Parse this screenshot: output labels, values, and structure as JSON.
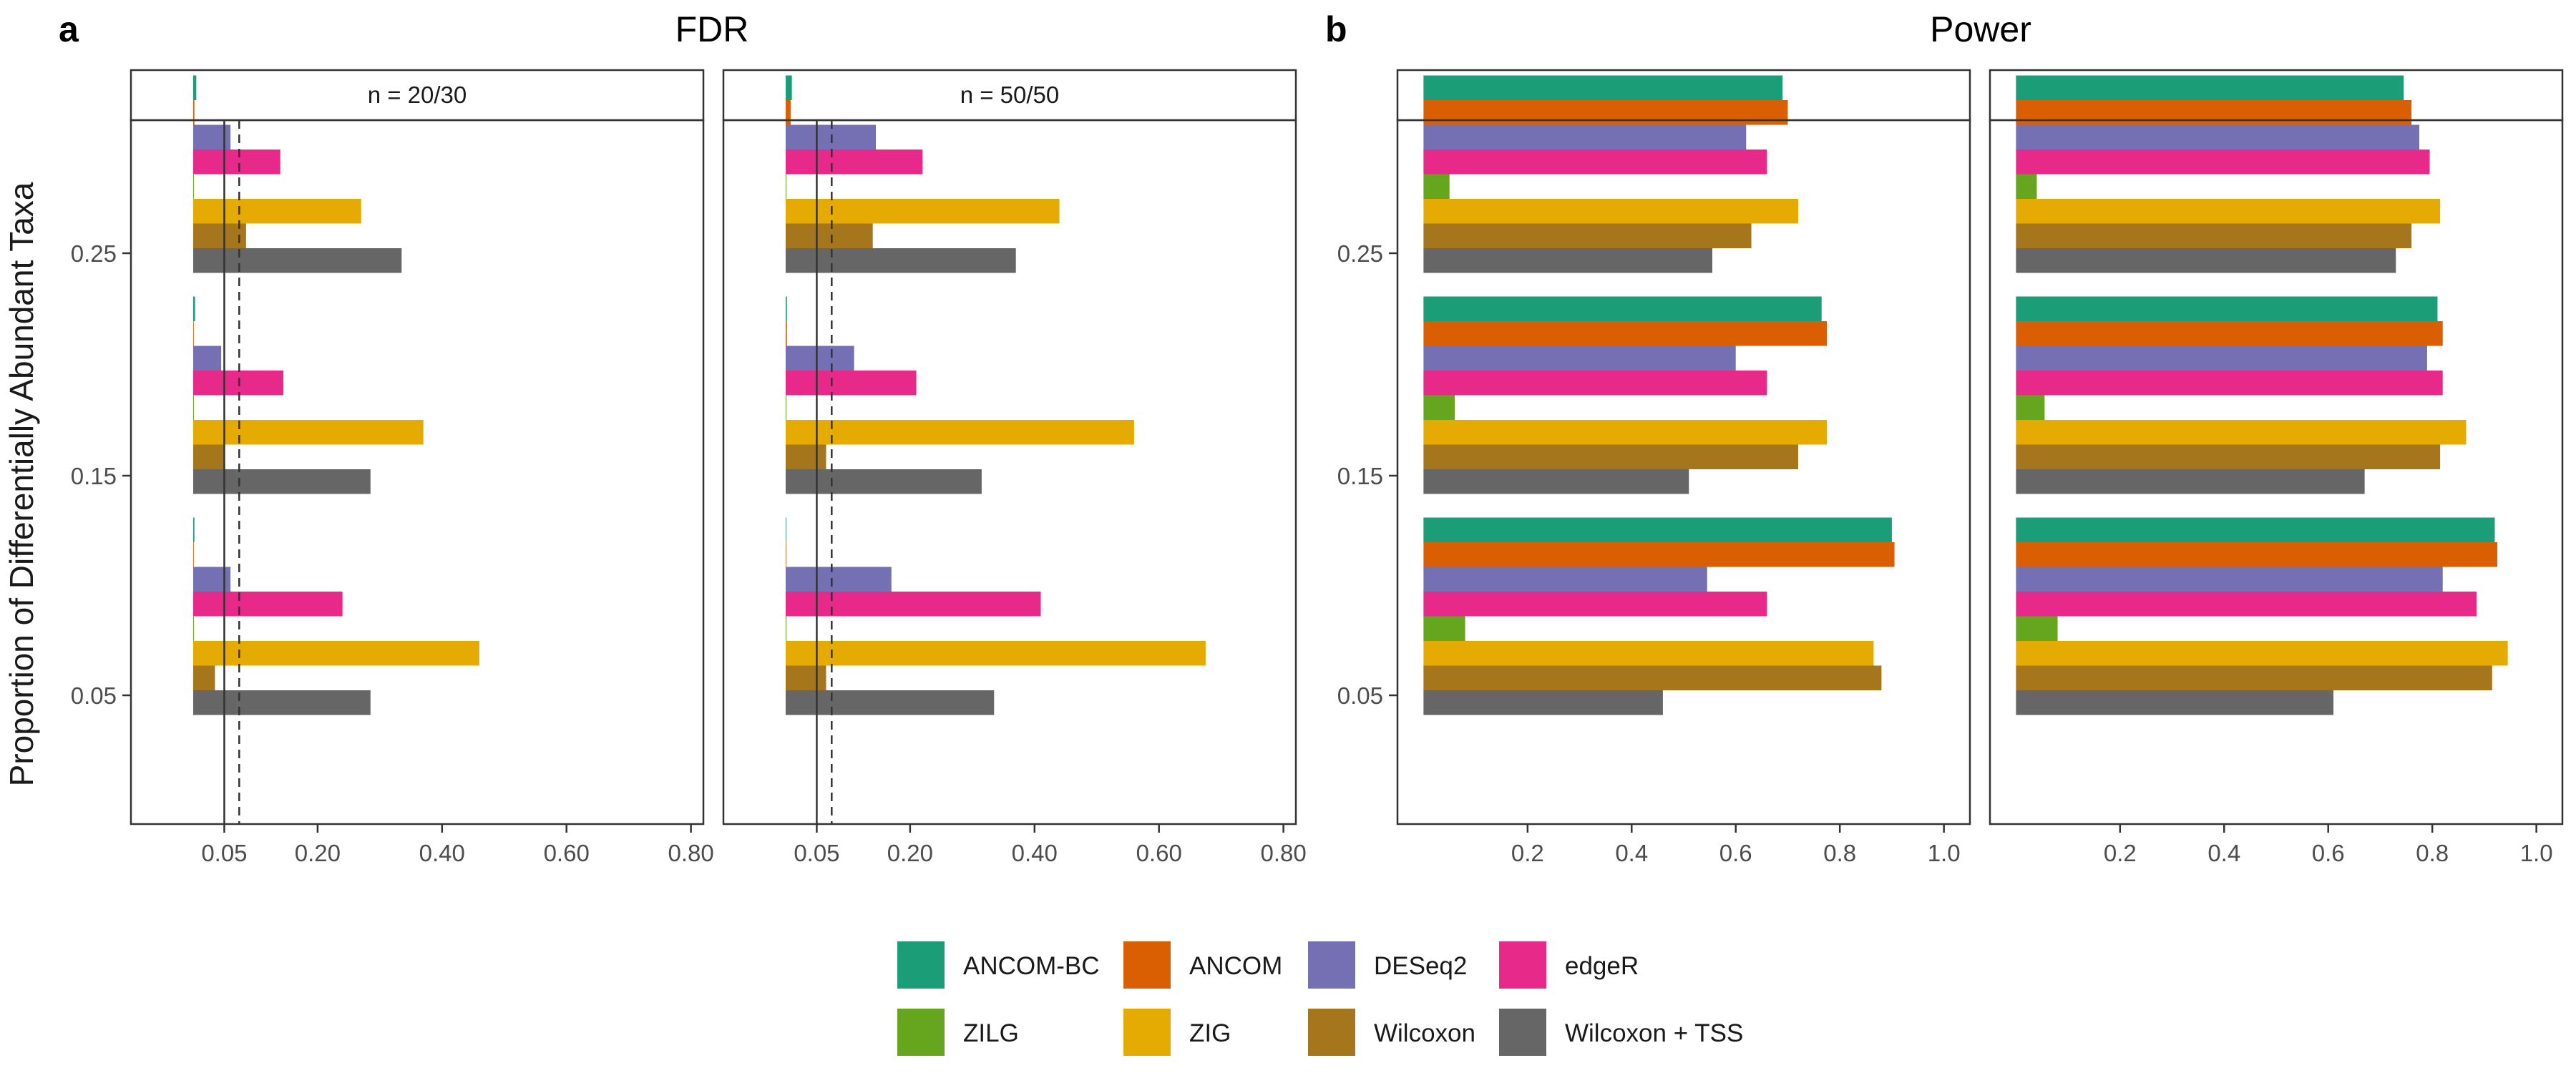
{
  "panels": [
    {
      "letter": "a",
      "title": "FDR"
    },
    {
      "letter": "b",
      "title": "Power"
    }
  ],
  "y_axis_label": "Proportion of Differentially Abundant Taxa",
  "colors": {
    "ANCOM-BC": "#1b9e77",
    "ANCOM": "#d95f02",
    "DESeq2": "#7570b3",
    "edgeR": "#e7298a",
    "ZILG": "#66a61e",
    "ZIG": "#e6ab02",
    "Wilcoxon": "#a6761d",
    "Wilcoxon + TSS": "#666666"
  },
  "legend": {
    "rows": [
      [
        "ANCOM-BC",
        "ANCOM",
        "DESeq2",
        "edgeR"
      ],
      [
        "ZILG",
        "ZIG",
        "Wilcoxon",
        "Wilcoxon + TSS"
      ]
    ]
  },
  "chart_data": [
    {
      "type": "bar",
      "orientation": "horizontal",
      "panel": "a",
      "title": "FDR",
      "facet": "n = 20/30",
      "ylabel": "Proportion of Differentially Abundant Taxa",
      "categories": [
        "0.05",
        "0.15",
        "0.25"
      ],
      "category_tick_labels": [
        "0.05",
        "0.15",
        "0.25"
      ],
      "xlim": [
        -0.1,
        0.82
      ],
      "xticks": [
        0.05,
        0.2,
        0.4,
        0.6,
        0.8
      ],
      "xtick_labels": [
        "0.05",
        "0.20",
        "0.40",
        "0.60",
        "0.80"
      ],
      "reference_lines": [
        {
          "x": 0.05,
          "style": "solid"
        },
        {
          "x": 0.074,
          "style": "dashed"
        }
      ],
      "series": [
        {
          "name": "ANCOM-BC",
          "values": [
            0.002,
            0.003,
            0.005
          ]
        },
        {
          "name": "ANCOM",
          "values": [
            0.001,
            0.001,
            0.002
          ]
        },
        {
          "name": "DESeq2",
          "values": [
            0.06,
            0.045,
            0.06
          ]
        },
        {
          "name": "edgeR",
          "values": [
            0.24,
            0.145,
            0.14
          ]
        },
        {
          "name": "ZILG",
          "values": [
            0.0,
            0.0,
            0.0
          ]
        },
        {
          "name": "ZIG",
          "values": [
            0.46,
            0.37,
            0.27
          ]
        },
        {
          "name": "Wilcoxon",
          "values": [
            0.035,
            0.05,
            0.085
          ]
        },
        {
          "name": "Wilcoxon + TSS",
          "values": [
            0.285,
            0.285,
            0.335
          ]
        }
      ]
    },
    {
      "type": "bar",
      "orientation": "horizontal",
      "panel": "a",
      "title": "FDR",
      "facet": "n = 50/50",
      "ylabel": "Proportion of Differentially Abundant Taxa",
      "categories": [
        "0.05",
        "0.15",
        "0.25"
      ],
      "category_tick_labels": [
        "0.05",
        "0.15",
        "0.25"
      ],
      "xlim": [
        -0.1,
        0.82
      ],
      "xticks": [
        0.05,
        0.2,
        0.4,
        0.6,
        0.8
      ],
      "xtick_labels": [
        "0.05",
        "0.20",
        "0.40",
        "0.60",
        "0.80"
      ],
      "reference_lines": [
        {
          "x": 0.05,
          "style": "solid"
        },
        {
          "x": 0.074,
          "style": "dashed"
        }
      ],
      "series": [
        {
          "name": "ANCOM-BC",
          "values": [
            0.001,
            0.002,
            0.01
          ]
        },
        {
          "name": "ANCOM",
          "values": [
            0.001,
            0.002,
            0.008
          ]
        },
        {
          "name": "DESeq2",
          "values": [
            0.17,
            0.11,
            0.145
          ]
        },
        {
          "name": "edgeR",
          "values": [
            0.41,
            0.21,
            0.22
          ]
        },
        {
          "name": "ZILG",
          "values": [
            0.0,
            0.0,
            0.0
          ]
        },
        {
          "name": "ZIG",
          "values": [
            0.675,
            0.56,
            0.44
          ]
        },
        {
          "name": "Wilcoxon",
          "values": [
            0.065,
            0.065,
            0.14
          ]
        },
        {
          "name": "Wilcoxon + TSS",
          "values": [
            0.335,
            0.315,
            0.37
          ]
        }
      ]
    },
    {
      "type": "bar",
      "orientation": "horizontal",
      "panel": "b",
      "title": "Power",
      "facet": "n = 20/30",
      "ylabel": "Proportion of Differentially Abundant Taxa",
      "categories": [
        "0.05",
        "0.15",
        "0.25"
      ],
      "category_tick_labels": [
        "0.05",
        "0.15",
        "0.25"
      ],
      "xlim": [
        -0.05,
        1.05
      ],
      "xticks": [
        0.2,
        0.4,
        0.6,
        0.8,
        1.0
      ],
      "xtick_labels": [
        "0.2",
        "0.4",
        "0.6",
        "0.8",
        "1.0"
      ],
      "reference_lines": [],
      "series": [
        {
          "name": "ANCOM-BC",
          "values": [
            0.9,
            0.765,
            0.69
          ]
        },
        {
          "name": "ANCOM",
          "values": [
            0.905,
            0.775,
            0.7
          ]
        },
        {
          "name": "DESeq2",
          "values": [
            0.545,
            0.6,
            0.62
          ]
        },
        {
          "name": "edgeR",
          "values": [
            0.66,
            0.66,
            0.66
          ]
        },
        {
          "name": "ZILG",
          "values": [
            0.08,
            0.06,
            0.05
          ]
        },
        {
          "name": "ZIG",
          "values": [
            0.865,
            0.775,
            0.72
          ]
        },
        {
          "name": "Wilcoxon",
          "values": [
            0.88,
            0.72,
            0.63
          ]
        },
        {
          "name": "Wilcoxon + TSS",
          "values": [
            0.46,
            0.51,
            0.555
          ]
        }
      ]
    },
    {
      "type": "bar",
      "orientation": "horizontal",
      "panel": "b",
      "title": "Power",
      "facet": "n = 50/50",
      "ylabel": "Proportion of Differentially Abundant Taxa",
      "categories": [
        "0.05",
        "0.15",
        "0.25"
      ],
      "category_tick_labels": [
        "0.05",
        "0.15",
        "0.25"
      ],
      "xlim": [
        -0.05,
        1.05
      ],
      "xticks": [
        0.2,
        0.4,
        0.6,
        0.8,
        1.0
      ],
      "xtick_labels": [
        "0.2",
        "0.4",
        "0.6",
        "0.8",
        "1.0"
      ],
      "reference_lines": [],
      "series": [
        {
          "name": "ANCOM-BC",
          "values": [
            0.92,
            0.81,
            0.745
          ]
        },
        {
          "name": "ANCOM",
          "values": [
            0.925,
            0.82,
            0.76
          ]
        },
        {
          "name": "DESeq2",
          "values": [
            0.82,
            0.79,
            0.775
          ]
        },
        {
          "name": "edgeR",
          "values": [
            0.885,
            0.82,
            0.795
          ]
        },
        {
          "name": "ZILG",
          "values": [
            0.08,
            0.055,
            0.04
          ]
        },
        {
          "name": "ZIG",
          "values": [
            0.945,
            0.865,
            0.815
          ]
        },
        {
          "name": "Wilcoxon",
          "values": [
            0.915,
            0.815,
            0.76
          ]
        },
        {
          "name": "Wilcoxon + TSS",
          "values": [
            0.61,
            0.67,
            0.73
          ]
        }
      ]
    }
  ]
}
